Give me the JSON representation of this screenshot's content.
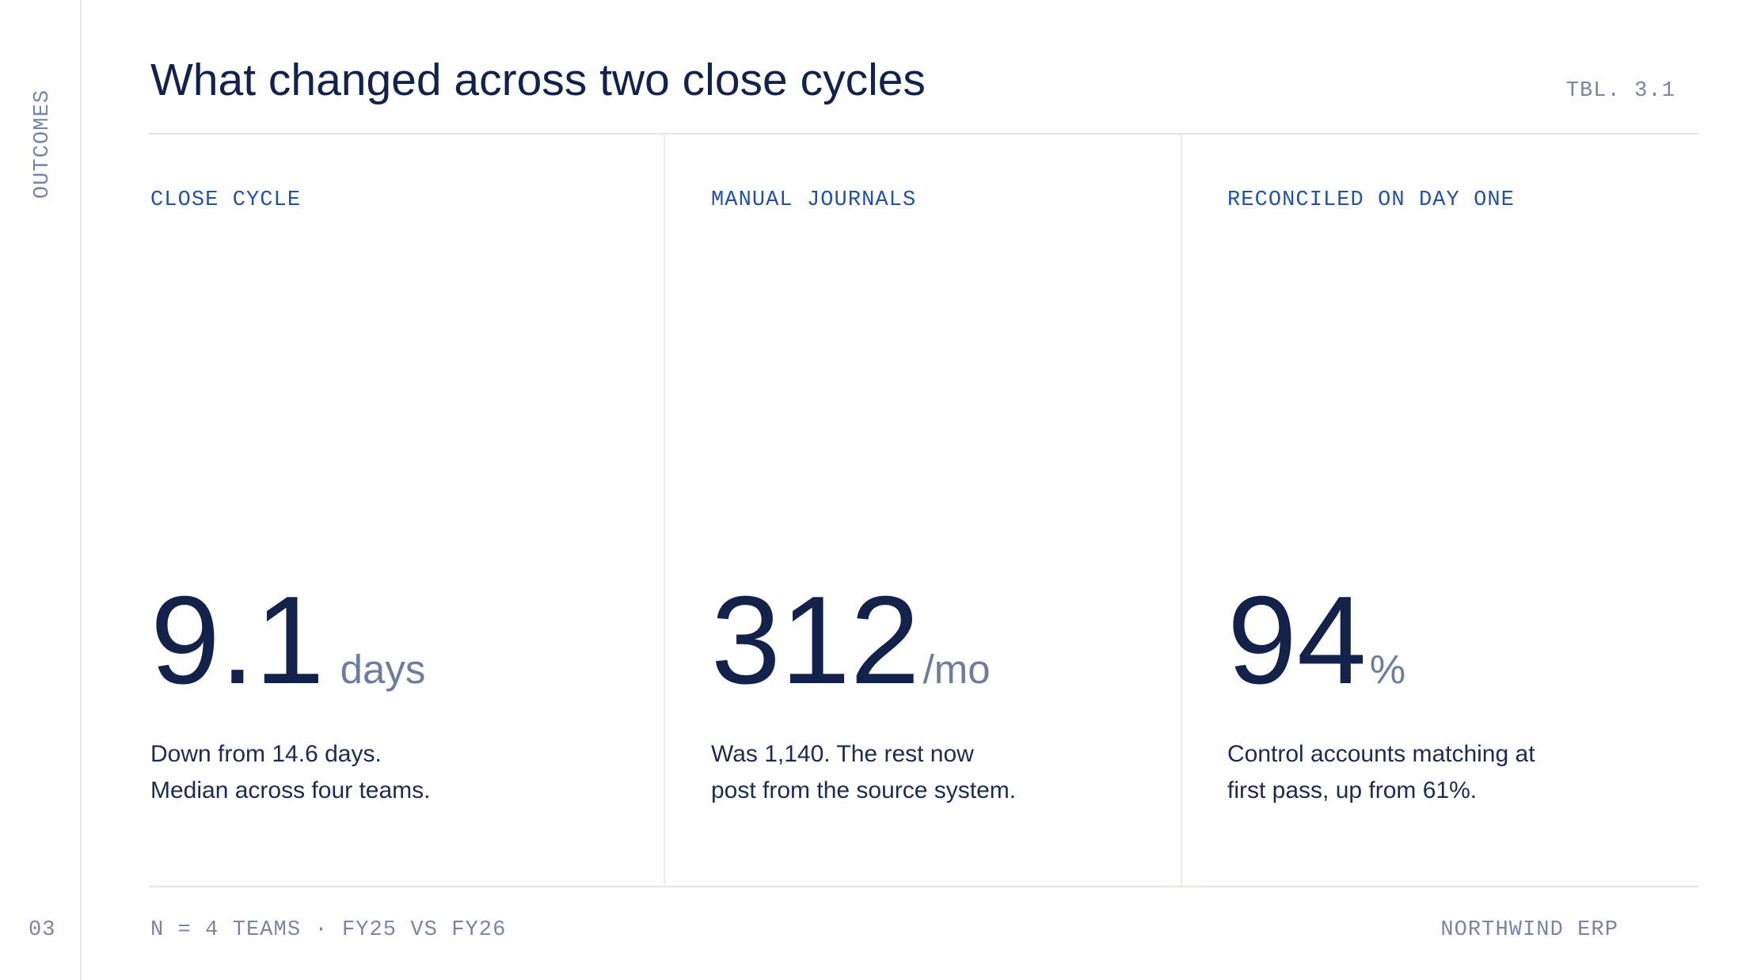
{
  "sidebar": {
    "section": "OUTCOMES",
    "page": "03"
  },
  "header": {
    "title": "What changed across two close cycles",
    "tag": "TBL. 3.1"
  },
  "metrics": [
    {
      "label": "CLOSE CYCLE",
      "value": "9.1",
      "unit": "days",
      "description": [
        "Down from 14.6 days.",
        "Median across four teams."
      ]
    },
    {
      "label": "MANUAL JOURNALS",
      "value": "312",
      "unit": "/mo",
      "description": [
        "Was 1,140. The rest now",
        "post from the source system."
      ]
    },
    {
      "label": "RECONCILED ON DAY ONE",
      "value": "94",
      "unit": "%",
      "description": [
        "Control accounts matching at",
        "first pass, up from 61%."
      ]
    }
  ],
  "footer": {
    "note": "N = 4 TEAMS · FY25 VS FY26",
    "brand": "NORTHWIND ERP"
  }
}
